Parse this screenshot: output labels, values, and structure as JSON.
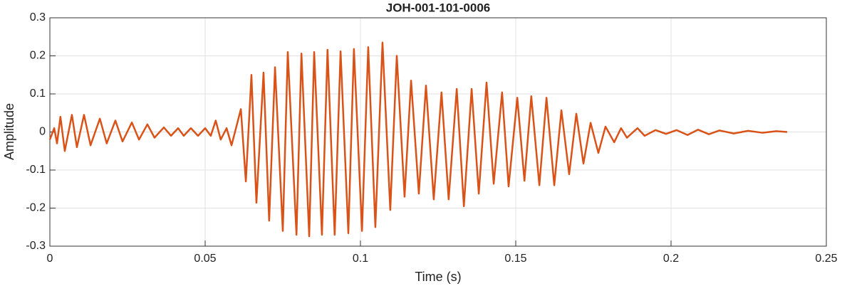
{
  "chart_data": {
    "type": "line",
    "title": "JOH-001-101-0006",
    "xlabel": "Time (s)",
    "ylabel": "Amplitude",
    "x": [
      0,
      0.0014,
      0.0023,
      0.0034,
      0.0048,
      0.0071,
      0.0087,
      0.011,
      0.0131,
      0.0161,
      0.0183,
      0.0211,
      0.0234,
      0.0264,
      0.0287,
      0.0314,
      0.0337,
      0.0367,
      0.039,
      0.0413,
      0.0431,
      0.0454,
      0.0477,
      0.05,
      0.0518,
      0.0534,
      0.055,
      0.0569,
      0.0585,
      0.0615,
      0.0631,
      0.0649,
      0.0665,
      0.0688,
      0.0706,
      0.0725,
      0.075,
      0.0766,
      0.0794,
      0.081,
      0.0835,
      0.0851,
      0.0876,
      0.0894,
      0.0917,
      0.0936,
      0.0961,
      0.0979,
      0.1005,
      0.1025,
      0.1048,
      0.1071,
      0.1096,
      0.1117,
      0.1142,
      0.1163,
      0.1188,
      0.1211,
      0.1236,
      0.1261,
      0.1284,
      0.131,
      0.1333,
      0.1358,
      0.1381,
      0.1406,
      0.1429,
      0.1456,
      0.1477,
      0.1505,
      0.1528,
      0.155,
      0.1576,
      0.1599,
      0.1624,
      0.1647,
      0.1672,
      0.1695,
      0.1718,
      0.1741,
      0.1766,
      0.1789,
      0.1817,
      0.1839,
      0.1858,
      0.1892,
      0.1915,
      0.195,
      0.1984,
      0.2018,
      0.2053,
      0.2087,
      0.2122,
      0.2156,
      0.2202,
      0.2248,
      0.2294,
      0.2339,
      0.2374
    ],
    "series": [
      {
        "name": "Amplitude",
        "color": "#d95319",
        "values": [
          -0.02,
          0.01,
          -0.03,
          0.04,
          -0.05,
          0.045,
          -0.04,
          0.045,
          -0.035,
          0.035,
          -0.03,
          0.03,
          -0.025,
          0.025,
          -0.02,
          0.02,
          -0.015,
          0.012,
          -0.01,
          0.01,
          -0.01,
          0.01,
          -0.01,
          0.01,
          -0.01,
          0.03,
          -0.02,
          0.01,
          -0.035,
          0.06,
          -0.13,
          0.15,
          -0.186,
          0.156,
          -0.233,
          0.17,
          -0.26,
          0.21,
          -0.27,
          0.206,
          -0.274,
          0.21,
          -0.27,
          0.216,
          -0.27,
          0.212,
          -0.266,
          0.218,
          -0.26,
          0.223,
          -0.25,
          0.235,
          -0.205,
          0.2,
          -0.17,
          0.135,
          -0.162,
          0.122,
          -0.177,
          0.104,
          -0.177,
          0.113,
          -0.195,
          0.113,
          -0.162,
          0.13,
          -0.136,
          0.104,
          -0.143,
          0.09,
          -0.128,
          0.094,
          -0.14,
          0.09,
          -0.14,
          0.057,
          -0.111,
          0.048,
          -0.083,
          0.024,
          -0.055,
          0.014,
          -0.027,
          0.01,
          -0.015,
          0.01,
          -0.01,
          0.005,
          -0.005,
          0.005,
          -0.008,
          0.006,
          -0.006,
          0.004,
          -0.004,
          0.003,
          -0.002,
          0.002,
          0
        ]
      }
    ],
    "xlim": [
      0,
      0.25
    ],
    "xticks": [
      0,
      0.05,
      0.1,
      0.15,
      0.2,
      0.25
    ],
    "ylim": [
      -0.3,
      0.3
    ],
    "yticks": [
      -0.3,
      -0.2,
      -0.1,
      0,
      0.1,
      0.2,
      0.3
    ],
    "grid": true
  }
}
